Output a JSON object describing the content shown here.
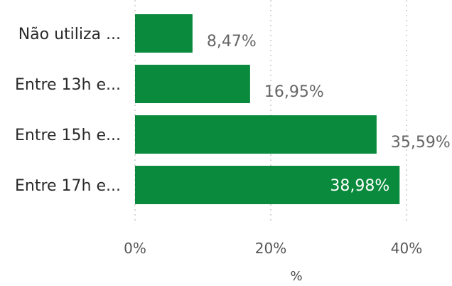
{
  "chart_data": {
    "type": "bar",
    "orientation": "horizontal",
    "categories": [
      "Não utiliza ...",
      "Entre 13h e...",
      "Entre 15h e...",
      "Entre 17h e..."
    ],
    "values": [
      8.47,
      16.95,
      35.59,
      38.98
    ],
    "data_labels": [
      "8,47%",
      "16,95%",
      "35,59%",
      "38,98%"
    ],
    "xlabel": "%",
    "ylabel": "",
    "xlim": [
      0,
      40
    ],
    "x_ticks": [
      {
        "value": 0,
        "label": "0%"
      },
      {
        "value": 20,
        "label": "20%"
      },
      {
        "value": 40,
        "label": "40%"
      }
    ],
    "grid": true,
    "bar_color": "#0a8a3c"
  }
}
